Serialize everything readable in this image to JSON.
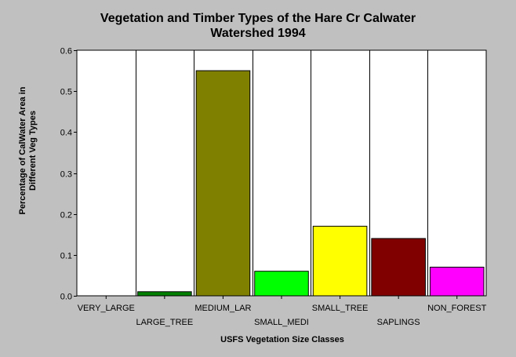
{
  "chart_data": {
    "type": "bar",
    "title": [
      "Vegetation and Timber Types of the Hare Cr Calwater",
      "Watershed 1994"
    ],
    "ylabel": [
      "Percentage of CalWater Area in",
      "Different Veg Types"
    ],
    "xlabel": "USFS Vegetation Size Classes",
    "categories": [
      "VERY_LARGE",
      "LARGE_TREE",
      "MEDIUM_LAR",
      "SMALL_MEDI",
      "SMALL_TREE",
      "SAPLINGS",
      "NON_FOREST"
    ],
    "values": [
      0,
      0.01,
      0.55,
      0.06,
      0.17,
      0.14,
      0.07
    ],
    "colors": [
      "#008000",
      "#008000",
      "#808000",
      "#00ff00",
      "#ffff00",
      "#800000",
      "#ff00ff"
    ],
    "ylim": [
      0,
      0.6
    ],
    "yticks": [
      "0.0",
      "0.1",
      "0.2",
      "0.3",
      "0.4",
      "0.5",
      "0.6"
    ],
    "grid": "vertical",
    "legend": "none"
  }
}
